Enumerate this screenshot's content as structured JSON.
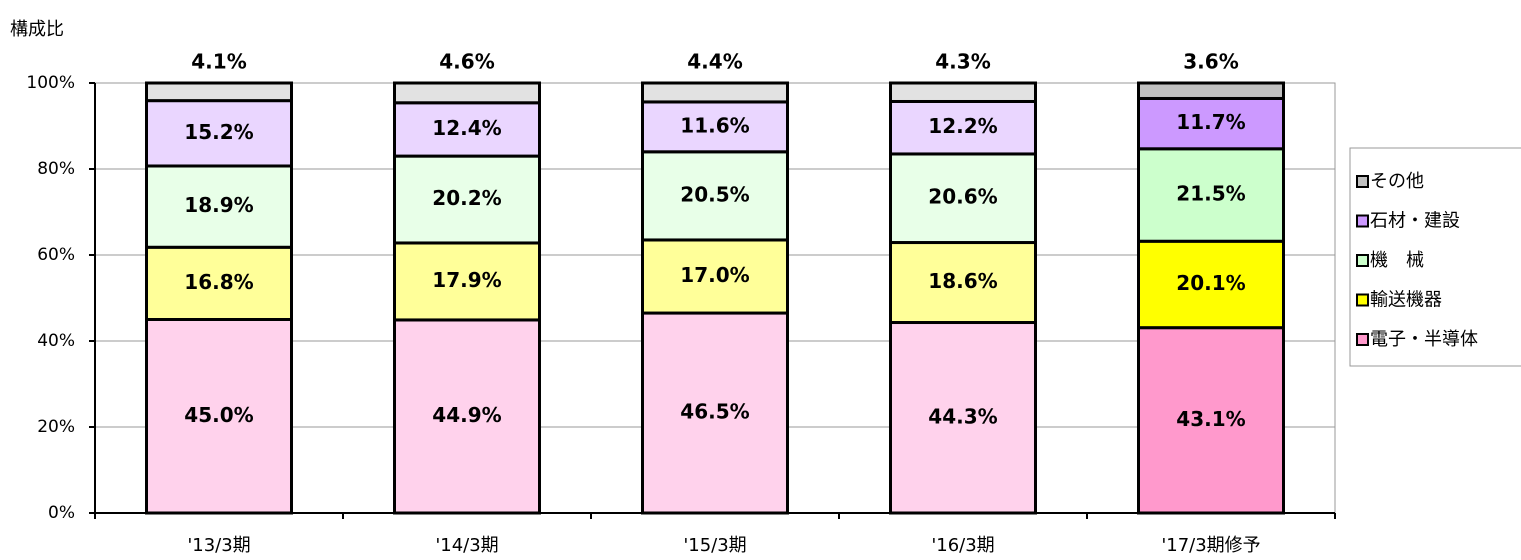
{
  "chart_data": {
    "type": "stacked_bar",
    "y_axis_label": "構成比",
    "categories": [
      "'13/3期",
      "'14/3期",
      "'15/3期",
      "'16/3期",
      "'17/3期修予"
    ],
    "series": [
      {
        "name": "電子・半導体",
        "colors": [
          "#ffd2ec",
          "#ffd2ec",
          "#ffd2ec",
          "#ffd2ec",
          "#ff99cc"
        ],
        "values": [
          45.0,
          44.9,
          46.5,
          44.3,
          43.1
        ],
        "value_labels": [
          "45.0%",
          "44.9%",
          "46.5%",
          "44.3%",
          "43.1%"
        ]
      },
      {
        "name": "輸送機器",
        "colors": [
          "#ffff99",
          "#ffff99",
          "#ffff99",
          "#ffff99",
          "#ffff00"
        ],
        "values": [
          16.8,
          17.9,
          17.0,
          18.6,
          20.1
        ],
        "value_labels": [
          "16.8%",
          "17.9%",
          "17.0%",
          "18.6%",
          "20.1%"
        ]
      },
      {
        "name": "機　械",
        "colors": [
          "#e8ffe8",
          "#e8ffe8",
          "#e8ffe8",
          "#e8ffe8",
          "#ccffcc"
        ],
        "values": [
          18.9,
          20.2,
          20.5,
          20.6,
          21.5
        ],
        "value_labels": [
          "18.9%",
          "20.2%",
          "20.5%",
          "20.6%",
          "21.5%"
        ]
      },
      {
        "name": "石材・建設",
        "colors": [
          "#ead6ff",
          "#ead6ff",
          "#ead6ff",
          "#ead6ff",
          "#cc99ff"
        ],
        "values": [
          15.2,
          12.4,
          11.6,
          12.2,
          11.7
        ],
        "value_labels": [
          "15.2%",
          "12.4%",
          "11.6%",
          "12.2%",
          "11.7%"
        ]
      },
      {
        "name": "その他",
        "colors": [
          "#e2e2e2",
          "#e2e2e2",
          "#e2e2e2",
          "#e2e2e2",
          "#c0c0c0"
        ],
        "values": [
          4.1,
          4.6,
          4.4,
          4.3,
          3.6
        ],
        "value_labels": [
          "4.1%",
          "4.6%",
          "4.4%",
          "4.3%",
          "3.6%"
        ]
      }
    ],
    "ylim": [
      0,
      100
    ],
    "yticks": [
      {
        "value": 0,
        "label": "0%"
      },
      {
        "value": 20,
        "label": "20%"
      },
      {
        "value": 40,
        "label": "40%"
      },
      {
        "value": 60,
        "label": "60%"
      },
      {
        "value": 80,
        "label": "80%"
      },
      {
        "value": 100,
        "label": "100%"
      }
    ],
    "grid": true
  }
}
